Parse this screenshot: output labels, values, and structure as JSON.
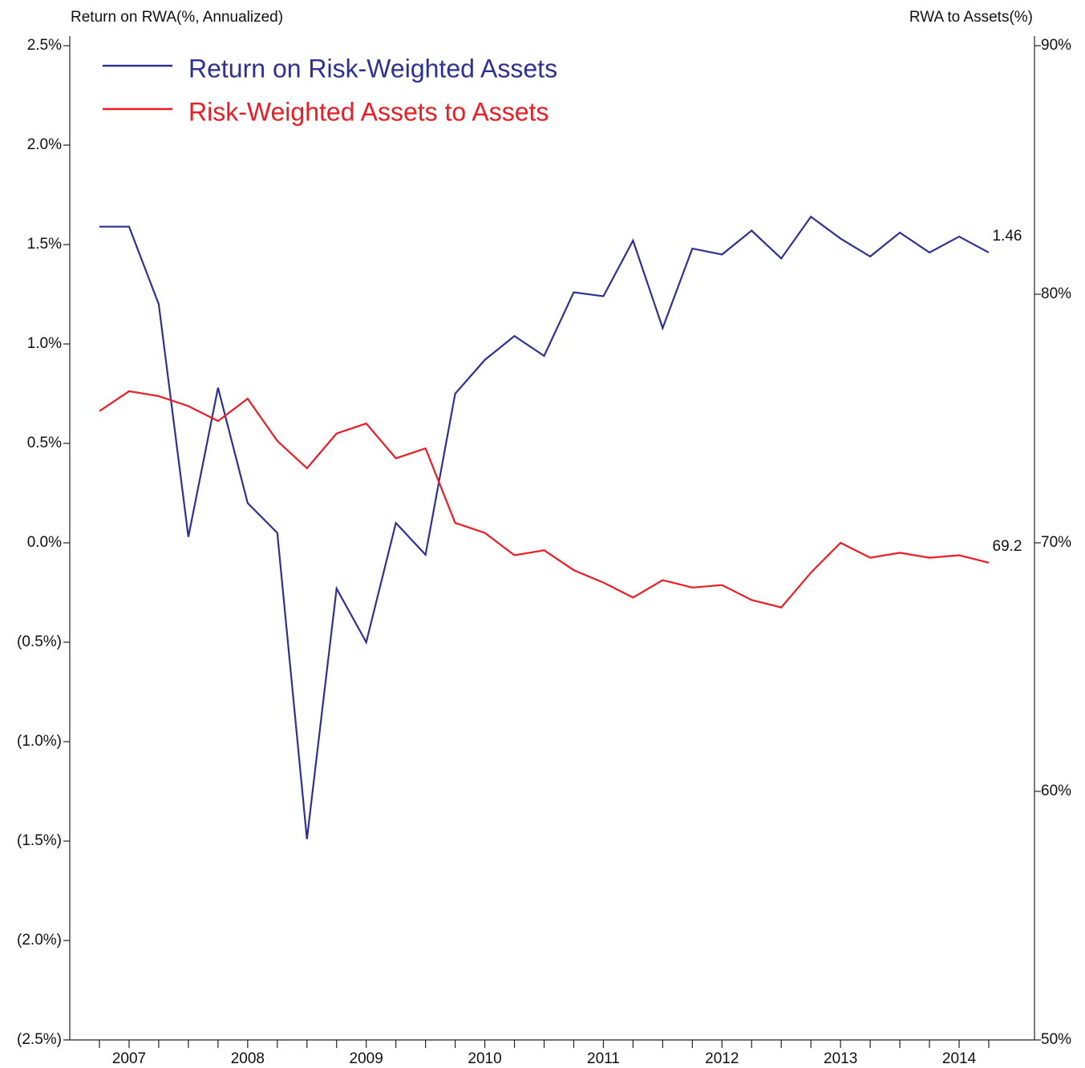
{
  "chart_data": {
    "type": "line",
    "ylabel": "Return on RWA(%, Annualized)",
    "y2label": "RWA to Assets(%)",
    "categories": [
      null,
      "2007",
      null,
      null,
      null,
      "2008",
      null,
      null,
      null,
      "2009",
      null,
      null,
      null,
      "2010",
      null,
      null,
      null,
      "2011",
      null,
      null,
      null,
      "2012",
      null,
      null,
      null,
      "2013",
      null,
      null,
      null,
      "2014",
      null
    ],
    "series": [
      {
        "name": "Return on Risk-Weighted Assets",
        "color": "#2e3192",
        "values": [
          1.59,
          1.59,
          1.2,
          0.03,
          0.78,
          0.2,
          0.05,
          -1.49,
          -0.23,
          -0.5,
          0.1,
          -0.06,
          0.75,
          0.92,
          1.04,
          0.94,
          1.26,
          1.24,
          1.52,
          1.08,
          1.48,
          1.45,
          1.57,
          1.43,
          1.64,
          1.53,
          1.44,
          1.56,
          1.46,
          1.54,
          1.46
        ],
        "value_labels": [
          null,
          null,
          null,
          null,
          null,
          null,
          null,
          null,
          null,
          null,
          null,
          null,
          null,
          null,
          null,
          null,
          null,
          null,
          null,
          null,
          null,
          null,
          null,
          null,
          null,
          null,
          null,
          null,
          null,
          null,
          "1.46"
        ]
      },
      {
        "name": "Risk-Weighted Assets to Assets",
        "color": "#ed1c24",
        "axis": "y2",
        "values": [
          75.3,
          76.1,
          75.9,
          75.5,
          74.9,
          75.8,
          74.1,
          73.0,
          74.4,
          74.8,
          73.4,
          73.8,
          70.8,
          70.4,
          69.5,
          69.7,
          68.9,
          68.4,
          67.8,
          68.5,
          68.2,
          68.3,
          67.7,
          67.4,
          68.8,
          70.0,
          69.4,
          69.6,
          69.4,
          69.5,
          69.2
        ],
        "value_labels": [
          null,
          null,
          null,
          null,
          null,
          null,
          null,
          null,
          null,
          null,
          null,
          null,
          null,
          null,
          null,
          null,
          null,
          null,
          null,
          null,
          null,
          null,
          null,
          null,
          null,
          null,
          null,
          null,
          null,
          null,
          "69.2"
        ]
      }
    ],
    "ylim": [
      -2.5,
      2.5
    ],
    "yticks": [
      {
        "value": 2.5,
        "label": "2.5%"
      },
      {
        "value": 2.0,
        "label": "2.0%"
      },
      {
        "value": 1.5,
        "label": "1.5%"
      },
      {
        "value": 1.0,
        "label": "1.0%"
      },
      {
        "value": 0.5,
        "label": "0.5%"
      },
      {
        "value": 0.0,
        "label": "0.0%"
      },
      {
        "value": -0.5,
        "label": "(0.5%)"
      },
      {
        "value": -1.0,
        "label": "(1.0%)"
      },
      {
        "value": -1.5,
        "label": "(1.5%)"
      },
      {
        "value": -2.0,
        "label": "(2.0%)"
      },
      {
        "value": -2.5,
        "label": "(2.5%)"
      }
    ],
    "y2lim": [
      50,
      90
    ],
    "y2ticks": [
      {
        "value": 90,
        "label": "90%"
      },
      {
        "value": 80,
        "label": "80%"
      },
      {
        "value": 70,
        "label": "70%"
      },
      {
        "value": 60,
        "label": "60%"
      },
      {
        "value": 50,
        "label": "50%"
      }
    ],
    "legend": "upper left"
  }
}
